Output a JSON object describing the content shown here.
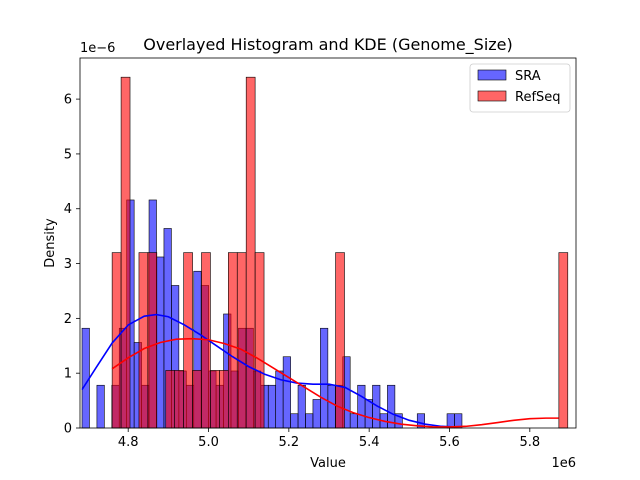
{
  "chart_data": {
    "type": "histogram",
    "title": "Overlayed Histogram and KDE (Genome_Size)",
    "xlabel": "Value",
    "ylabel": "Density",
    "x_multiplier_label": "1e6",
    "y_multiplier_label": "1e−6",
    "xlim": [
      4.68,
      5.915
    ],
    "ylim": [
      0,
      6.75
    ],
    "x_ticks": [
      4.8,
      5.0,
      5.2,
      5.4,
      5.6,
      5.8
    ],
    "x_tick_labels": [
      "4.8",
      "5.0",
      "5.2",
      "5.4",
      "5.6",
      "5.8"
    ],
    "y_ticks": [
      0,
      1,
      2,
      3,
      4,
      5,
      6
    ],
    "y_tick_labels": [
      "0",
      "1",
      "2",
      "3",
      "4",
      "5",
      "6"
    ],
    "legend_position": "top-right",
    "series": [
      {
        "name": "SRA",
        "color": "#0000ff",
        "bin_width": 0.01855,
        "bins": [
          [
            4.685,
            1.82
          ],
          [
            4.7035,
            0.0
          ],
          [
            4.7221,
            0.78
          ],
          [
            4.7406,
            0.0
          ],
          [
            4.7592,
            0.78
          ],
          [
            4.7777,
            1.82
          ],
          [
            4.7963,
            4.16
          ],
          [
            4.8148,
            1.56
          ],
          [
            4.8334,
            0.78
          ],
          [
            4.8519,
            4.16
          ],
          [
            4.8705,
            3.12
          ],
          [
            4.889,
            3.64
          ],
          [
            4.9076,
            2.6
          ],
          [
            4.9261,
            1.04
          ],
          [
            4.9447,
            0.78
          ],
          [
            4.9632,
            2.86
          ],
          [
            4.9818,
            2.6
          ],
          [
            5.0003,
            1.04
          ],
          [
            5.0189,
            0.78
          ],
          [
            5.0374,
            2.08
          ],
          [
            5.056,
            1.04
          ],
          [
            5.0745,
            1.82
          ],
          [
            5.0931,
            1.82
          ],
          [
            5.1116,
            1.04
          ],
          [
            5.1302,
            0.78
          ],
          [
            5.1487,
            0.78
          ],
          [
            5.1673,
            1.04
          ],
          [
            5.1858,
            1.3
          ],
          [
            5.2044,
            0.26
          ],
          [
            5.2229,
            0.78
          ],
          [
            5.2415,
            0.26
          ],
          [
            5.26,
            0.52
          ],
          [
            5.2786,
            1.82
          ],
          [
            5.2971,
            0.78
          ],
          [
            5.3157,
            0.78
          ],
          [
            5.3342,
            1.3
          ],
          [
            5.3528,
            0.26
          ],
          [
            5.3713,
            0.78
          ],
          [
            5.3899,
            0.52
          ],
          [
            5.4084,
            0.78
          ],
          [
            5.427,
            0.26
          ],
          [
            5.4455,
            0.78
          ],
          [
            5.4641,
            0.26
          ],
          [
            5.4826,
            0.0
          ],
          [
            5.5012,
            0.0
          ],
          [
            5.5197,
            0.26
          ],
          [
            5.5383,
            0.0
          ],
          [
            5.5568,
            0.0
          ],
          [
            5.5754,
            0.0
          ],
          [
            5.5939,
            0.26
          ],
          [
            5.6125,
            0.26
          ]
        ],
        "kde": [
          [
            4.685,
            0.7
          ],
          [
            4.72,
            1.1
          ],
          [
            4.76,
            1.55
          ],
          [
            4.8,
            1.88
          ],
          [
            4.84,
            2.04
          ],
          [
            4.87,
            2.07
          ],
          [
            4.9,
            2.03
          ],
          [
            4.94,
            1.88
          ],
          [
            4.98,
            1.7
          ],
          [
            5.02,
            1.5
          ],
          [
            5.06,
            1.3
          ],
          [
            5.1,
            1.12
          ],
          [
            5.14,
            0.98
          ],
          [
            5.18,
            0.88
          ],
          [
            5.22,
            0.82
          ],
          [
            5.26,
            0.8
          ],
          [
            5.3,
            0.8
          ],
          [
            5.34,
            0.74
          ],
          [
            5.38,
            0.58
          ],
          [
            5.42,
            0.4
          ],
          [
            5.46,
            0.25
          ],
          [
            5.5,
            0.14
          ],
          [
            5.54,
            0.07
          ],
          [
            5.58,
            0.03
          ],
          [
            5.613,
            0.02
          ]
        ]
      },
      {
        "name": "RefSeq",
        "color": "#ff0000",
        "bin_width": 0.02225,
        "bins": [
          [
            4.76,
            3.2
          ],
          [
            4.7823,
            6.4
          ],
          [
            4.8045,
            0.0
          ],
          [
            4.8268,
            3.2
          ],
          [
            4.849,
            3.2
          ],
          [
            4.8713,
            0.0
          ],
          [
            4.8935,
            1.05
          ],
          [
            4.9158,
            1.05
          ],
          [
            4.938,
            3.2
          ],
          [
            4.9603,
            1.05
          ],
          [
            4.9825,
            3.2
          ],
          [
            5.0048,
            1.05
          ],
          [
            5.027,
            1.05
          ],
          [
            5.0493,
            3.2
          ],
          [
            5.0715,
            3.2
          ],
          [
            5.0938,
            6.4
          ],
          [
            5.116,
            3.2
          ],
          [
            5.1383,
            0.0
          ],
          [
            5.1605,
            0.0
          ],
          [
            5.1828,
            0.0
          ],
          [
            5.205,
            0.0
          ],
          [
            5.2273,
            0.0
          ],
          [
            5.2495,
            0.0
          ],
          [
            5.2718,
            0.0
          ],
          [
            5.294,
            0.0
          ],
          [
            5.3163,
            3.2
          ],
          [
            5.85,
            0.0
          ],
          [
            5.8723,
            3.2
          ]
        ],
        "kde": [
          [
            4.76,
            1.08
          ],
          [
            4.8,
            1.28
          ],
          [
            4.84,
            1.45
          ],
          [
            4.88,
            1.56
          ],
          [
            4.92,
            1.62
          ],
          [
            4.96,
            1.63
          ],
          [
            5.0,
            1.61
          ],
          [
            5.04,
            1.54
          ],
          [
            5.08,
            1.44
          ],
          [
            5.12,
            1.28
          ],
          [
            5.16,
            1.1
          ],
          [
            5.2,
            0.92
          ],
          [
            5.24,
            0.74
          ],
          [
            5.28,
            0.56
          ],
          [
            5.32,
            0.4
          ],
          [
            5.36,
            0.28
          ],
          [
            5.4,
            0.19
          ],
          [
            5.44,
            0.12
          ],
          [
            5.48,
            0.07
          ],
          [
            5.52,
            0.04
          ],
          [
            5.56,
            0.02
          ],
          [
            5.6,
            0.02
          ],
          [
            5.64,
            0.03
          ],
          [
            5.68,
            0.06
          ],
          [
            5.72,
            0.1
          ],
          [
            5.76,
            0.14
          ],
          [
            5.8,
            0.17
          ],
          [
            5.84,
            0.18
          ],
          [
            5.872,
            0.18
          ]
        ]
      }
    ]
  }
}
